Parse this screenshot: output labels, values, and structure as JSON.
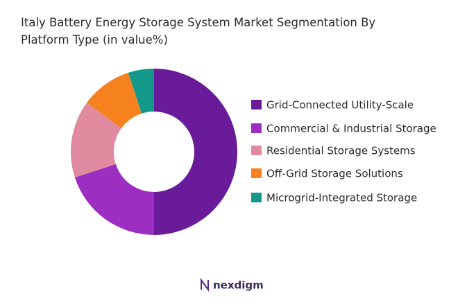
{
  "chart_data": {
    "type": "pie",
    "title": "Italy Battery Energy Storage System Market Segmentation By Platform Type (in value%)",
    "categories": [
      "Grid-Connected Utility-Scale",
      "Commercial & Industrial Storage",
      "Residential Storage Systems",
      "Off-Grid Storage Solutions",
      "Microgrid-Integrated Storage"
    ],
    "values": [
      50,
      20,
      15,
      10,
      5
    ],
    "colors": [
      "#6a1b9a",
      "#9c2fc2",
      "#e08a9f",
      "#f5821f",
      "#13998a"
    ],
    "legend": "right"
  },
  "brand": "nexdigm"
}
